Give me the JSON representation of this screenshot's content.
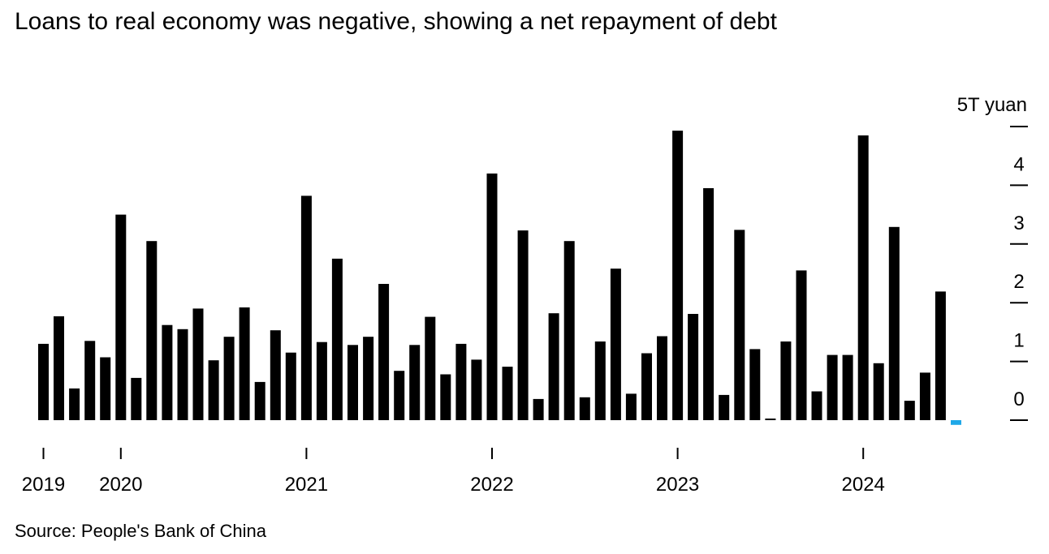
{
  "chart_data": {
    "type": "bar",
    "title": "Loans to real economy was negative, showing a net repayment of debt",
    "unit_label": "5T yuan",
    "ylabel": "T yuan",
    "ylim": [
      0,
      5
    ],
    "yticks": [
      0,
      1,
      2,
      3,
      4,
      5
    ],
    "ytick_labels": [
      "0",
      "1",
      "2",
      "3",
      "4"
    ],
    "x_start": "2019-03",
    "x_labels": [
      {
        "label": "2019",
        "index": 0
      },
      {
        "label": "2020",
        "index": 5
      },
      {
        "label": "2021",
        "index": 17
      },
      {
        "label": "2022",
        "index": 29
      },
      {
        "label": "2023",
        "index": 41
      },
      {
        "label": "2024",
        "index": 53
      }
    ],
    "series": [
      {
        "name": "Loans to real economy",
        "values": [
          1.3,
          1.77,
          0.54,
          1.35,
          1.07,
          3.5,
          0.72,
          3.05,
          1.62,
          1.55,
          1.9,
          1.02,
          1.42,
          1.92,
          0.65,
          1.53,
          1.15,
          3.82,
          1.33,
          2.75,
          1.28,
          1.42,
          2.32,
          0.84,
          1.28,
          1.76,
          0.78,
          1.3,
          1.03,
          4.2,
          0.91,
          3.23,
          0.36,
          1.82,
          3.05,
          0.39,
          1.34,
          2.58,
          0.45,
          1.14,
          1.43,
          4.93,
          1.81,
          3.95,
          0.43,
          3.24,
          1.21,
          0.02,
          1.34,
          2.55,
          0.49,
          1.11,
          1.11,
          4.85,
          0.97,
          3.29,
          0.33,
          0.81,
          2.19,
          -0.08
        ]
      }
    ],
    "highlight_color": "#1fa8e8",
    "bar_color": "#000000",
    "highlight_index": 59
  },
  "source": "Source: People's Bank of China"
}
